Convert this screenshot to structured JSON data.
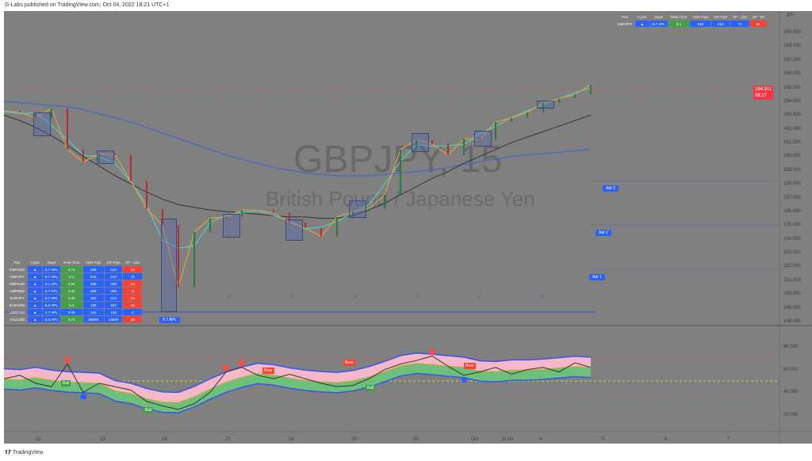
{
  "header": {
    "text": "G-Labs published on TradingView.com, Oct 04, 2022 18:21 UTC+1"
  },
  "footer": {
    "logo": "TradingView"
  },
  "symbol": {
    "ticker": "GBPJPY, 15",
    "name": "British Pound / Japanese Yen",
    "currency": "JPY",
    "last_price": "164.911",
    "countdown": "08:27"
  },
  "colors": {
    "background": "#808080",
    "up": "#43a047",
    "down": "#f44336",
    "accent": "#2962ff",
    "price_tag": "#f23645"
  },
  "price_axis": [
    "169.000",
    "168.000",
    "167.000",
    "166.000",
    "165.000",
    "164.000",
    "163.000",
    "162.000",
    "161.000",
    "160.000",
    "159.000",
    "158.000",
    "157.000",
    "156.000",
    "155.000",
    "154.000",
    "153.000",
    "152.000",
    "151.000",
    "150.000",
    "149.000",
    "148.000"
  ],
  "osc_axis": [
    "80.000",
    "60.000",
    "40.000",
    "20.000"
  ],
  "time_axis": [
    "22",
    "23",
    "26",
    "27",
    "28",
    "29",
    "30",
    "Oct",
    "11:00",
    "4",
    "5",
    "6",
    "7"
  ],
  "day_markers": [
    "M",
    "Tu",
    "W",
    "Th",
    "F",
    "M"
  ],
  "adr_labels": [
    "Adr 3",
    "Adr 2",
    "Adr 1"
  ],
  "apl_label": "8.7 APL",
  "top_table": {
    "headers": [
      "Pair",
      "Cycle",
      "Days",
      "Real Time",
      "ADR Pips",
      "DR Pips",
      "SF - 240",
      "SF - 60"
    ],
    "row": [
      "GBPJPY",
      "▲",
      "8.7 APL",
      "5.1",
      "318",
      "212",
      "71",
      "91"
    ]
  },
  "multi_table": {
    "headers": [
      "Pair",
      "Cycle",
      "Days",
      "Real Time",
      "ADR Pips",
      "DR Pips",
      "SF - 240"
    ],
    "rows": [
      [
        "GBPUSD",
        "▲",
        "8.7 APL",
        "4.71",
        "228",
        "210",
        "14"
      ],
      [
        "GBPJPY",
        "▲",
        "8.7 APL",
        "5.1",
        "318",
        "212",
        "71"
      ],
      [
        "GBPAUD",
        "▲",
        "6.1 APL",
        "4.01",
        "286",
        "259",
        "14"
      ],
      [
        "GBPNZD",
        "▲",
        "5.7 APL",
        "3.31",
        "326",
        "285",
        "11"
      ],
      [
        "EURJPY",
        "▲",
        "8.7 APL",
        "3.48",
        "181",
        "212",
        "14"
      ],
      [
        "EURUSD",
        "▲",
        "6.4 APL",
        "3.4",
        "125",
        "187",
        "14"
      ],
      [
        "USDCAD",
        "▲",
        "4.7 APL",
        "0.46",
        "141",
        "142",
        "2"
      ],
      [
        "XAUUSD",
        "▲",
        "6.4 APL",
        "3.71",
        "28585",
        "14549",
        "25"
      ]
    ]
  },
  "osc_signals": [
    "Bull",
    "Bear"
  ],
  "price_series": [
    163.3,
    163.2,
    162.8,
    163.5,
    160.5,
    159.6,
    160.2,
    160.1,
    158.2,
    156.2,
    155,
    150.5,
    154.5,
    155.5,
    155.6,
    156.1,
    156.1,
    155.9,
    155.2,
    154.8,
    154.2,
    155.6,
    156,
    156.2,
    157.2,
    160.5,
    161.2,
    160.9,
    160.1,
    161.3,
    161.2,
    162.5,
    162.8,
    163.2,
    163.9,
    164.2,
    164.5,
    165.2
  ],
  "ma_slow": [
    163,
    162.6,
    162.1,
    161.5,
    160.8,
    160,
    159.3,
    158.6,
    158,
    157.4,
    156.9,
    156.5,
    156.3,
    156.1,
    156,
    155.9,
    155.8,
    155.7,
    155.6,
    155.6,
    155.5,
    155.5,
    155.7,
    156.1,
    156.6,
    157.2,
    157.8,
    158.4,
    158.9,
    159.5,
    160,
    160.5,
    161,
    161.4,
    161.8,
    162.2,
    162.6,
    163
  ],
  "ma_long": [
    164,
    163.9,
    163.8,
    163.7,
    163.6,
    163.4,
    163.1,
    162.8,
    162.5,
    162.1,
    161.7,
    161.3,
    160.9,
    160.5,
    160.1,
    159.8,
    159.5,
    159.2,
    159,
    158.8,
    158.7,
    158.6,
    158.6,
    158.6,
    158.7,
    158.8,
    158.9,
    159,
    159.2,
    159.4,
    159.6,
    159.8,
    160,
    160.1,
    160.2,
    160.3,
    160.4,
    160.5
  ],
  "osc_series": [
    52,
    55,
    48,
    45,
    65,
    40,
    48,
    45,
    42,
    32,
    28,
    25,
    30,
    40,
    58,
    62,
    55,
    52,
    56,
    52,
    48,
    45,
    46,
    52,
    60,
    65,
    68,
    72,
    63,
    55,
    58,
    62,
    56,
    60,
    62,
    58,
    66,
    62
  ],
  "osc_levels": {
    "upper": 70,
    "mid": 50,
    "lower": 30
  }
}
